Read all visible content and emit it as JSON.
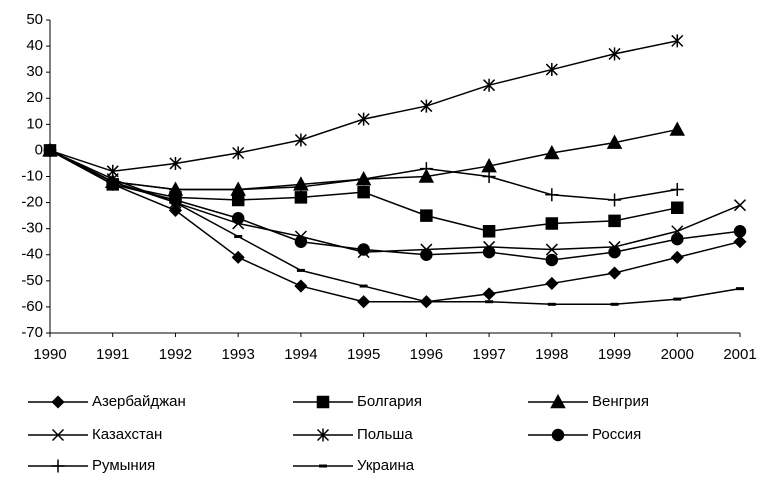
{
  "chart_data": {
    "type": "line",
    "x": [
      1990,
      1991,
      1992,
      1993,
      1994,
      1995,
      1996,
      1997,
      1998,
      1999,
      2000,
      2001
    ],
    "xlim": [
      1990,
      2001
    ],
    "xticks": [
      1990,
      1991,
      1992,
      1993,
      1994,
      1995,
      1996,
      1997,
      1998,
      1999,
      2000,
      2001
    ],
    "ylim": [
      -70,
      50
    ],
    "yticks": [
      -70,
      -60,
      -50,
      -40,
      -30,
      -20,
      -10,
      0,
      10,
      20,
      30,
      40,
      50
    ],
    "grid": false,
    "legend": "bottom",
    "series": [
      {
        "name": "Азербайджан",
        "color": "#000000",
        "marker": "diamond",
        "values": [
          0,
          -13,
          -23,
          -41,
          -52,
          -58,
          -58,
          -55,
          -51,
          -47,
          -41,
          -35
        ]
      },
      {
        "name": "Болгария",
        "color": "#000000",
        "marker": "square",
        "values": [
          0,
          -13,
          -18,
          -19,
          -18,
          -16,
          -25,
          -31,
          -28,
          -27,
          -22,
          null
        ]
      },
      {
        "name": "Венгрия",
        "color": "#000000",
        "marker": "triangle",
        "values": [
          0,
          -12,
          -15,
          -15,
          -13,
          -11,
          -10,
          -6,
          -1,
          3,
          8,
          null
        ]
      },
      {
        "name": "Казахстан",
        "color": "#000000",
        "marker": "x",
        "values": [
          0,
          -11,
          -20,
          -28,
          -33,
          -39,
          -38,
          -37,
          -38,
          -37,
          -31,
          -21
        ]
      },
      {
        "name": "Польша",
        "color": "#000000",
        "marker": "asterisk",
        "values": [
          0,
          -8,
          -5,
          -1,
          4,
          12,
          17,
          25,
          31,
          37,
          42,
          null
        ]
      },
      {
        "name": "Россия",
        "color": "#000000",
        "marker": "circle",
        "values": [
          0,
          -13,
          -19,
          -26,
          -35,
          -38,
          -40,
          -39,
          -42,
          -39,
          -34,
          -31
        ]
      },
      {
        "name": "Румыния",
        "color": "#000000",
        "marker": "plus",
        "values": [
          0,
          -12,
          -15,
          -15,
          -14,
          -11,
          -7,
          -10,
          -17,
          -19,
          -15,
          null
        ]
      },
      {
        "name": "Украина",
        "color": "#000000",
        "marker": "dash",
        "values": [
          0,
          -12,
          -20,
          -33,
          -46,
          -52,
          -58,
          -58,
          -59,
          -59,
          -57,
          -53
        ]
      }
    ]
  }
}
